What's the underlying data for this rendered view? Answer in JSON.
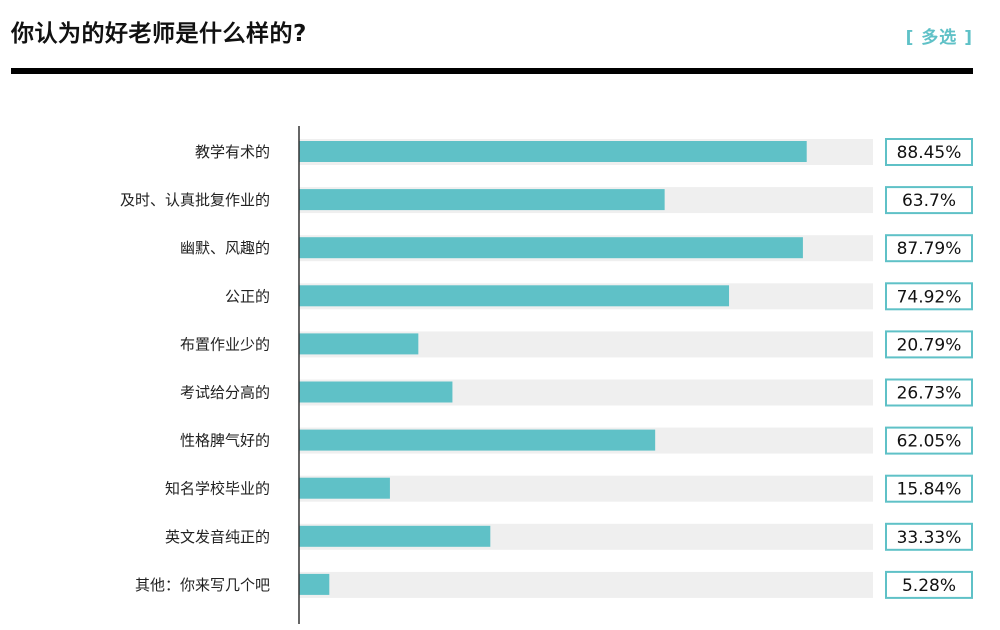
{
  "header": {
    "title": "你认为的好老师是什么样的?",
    "tag": "[ 多选 ]"
  },
  "colors": {
    "bar": "#5fc1c7",
    "track": "#efefef",
    "value_box_border": "#5fc1c7",
    "axis": "#333333",
    "rule": "#000000",
    "text": "#222222"
  },
  "chart_data": {
    "type": "bar",
    "orientation": "horizontal",
    "categories": [
      "教学有术的",
      "及时、认真批复作业的",
      "幽默、风趣的",
      "公正的",
      "布置作业少的",
      "考试给分高的",
      "性格脾气好的",
      "知名学校毕业的",
      "英文发音纯正的",
      "其他：你来写几个吧"
    ],
    "values": [
      88.45,
      63.7,
      87.79,
      74.92,
      20.79,
      26.73,
      62.05,
      15.84,
      33.33,
      5.28
    ],
    "value_labels": [
      "88.45%",
      "63.7%",
      "87.79%",
      "74.92%",
      "20.79%",
      "26.73%",
      "62.05%",
      "15.84%",
      "33.33%",
      "5.28%"
    ],
    "xlim": [
      0,
      100
    ],
    "unit": "%",
    "grid": false,
    "legend": "none"
  }
}
